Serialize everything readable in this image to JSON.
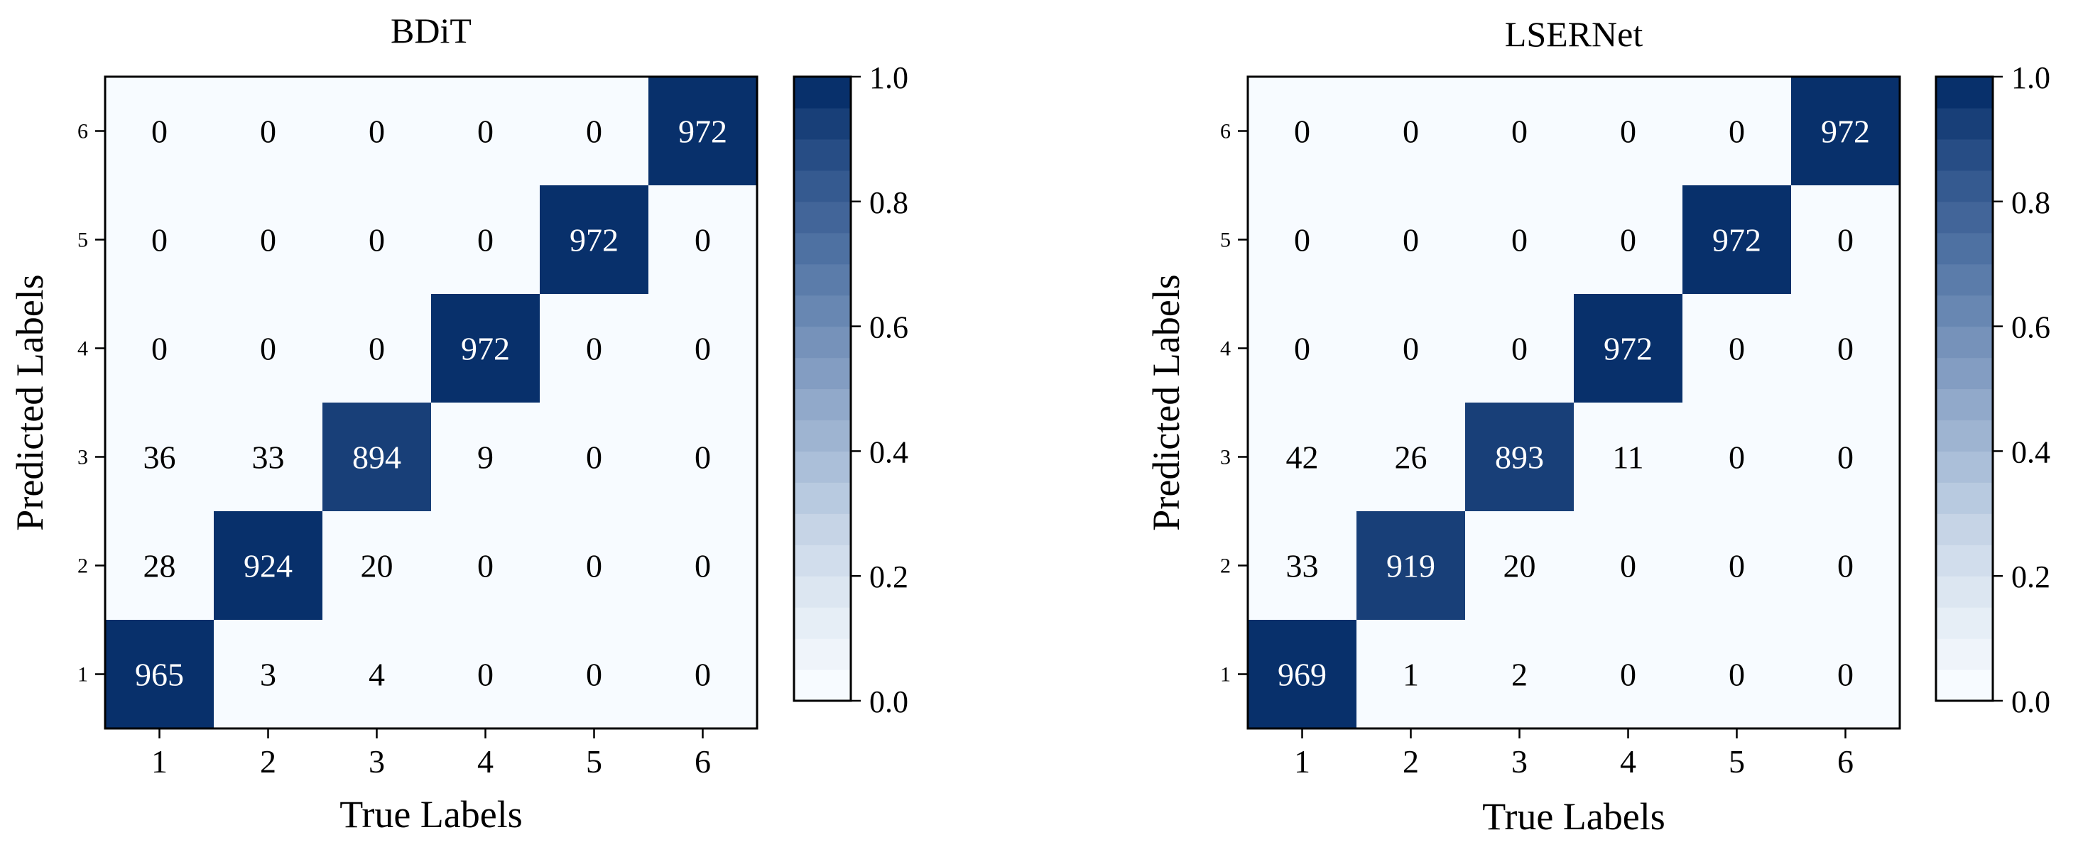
{
  "chart_data": [
    {
      "type": "heatmap",
      "title": "BDiT",
      "xlabel": "True Labels",
      "ylabel": "Predicted Labels",
      "x_categories": [
        "1",
        "2",
        "3",
        "4",
        "5",
        "6"
      ],
      "y_categories": [
        "1",
        "2",
        "3",
        "4",
        "5",
        "6"
      ],
      "rows_top_to_bottom": [
        "6",
        "5",
        "4",
        "3",
        "2",
        "1"
      ],
      "matrix_top_to_bottom": [
        [
          0,
          0,
          0,
          0,
          0,
          972
        ],
        [
          0,
          0,
          0,
          0,
          972,
          0
        ],
        [
          0,
          0,
          0,
          972,
          0,
          0
        ],
        [
          36,
          33,
          894,
          9,
          0,
          0
        ],
        [
          28,
          924,
          20,
          0,
          0,
          0
        ],
        [
          965,
          3,
          4,
          0,
          0,
          0
        ]
      ],
      "colorbar": {
        "range": [
          0.0,
          1.0
        ],
        "ticks": [
          "0.0",
          "0.2",
          "0.4",
          "0.6",
          "0.8",
          "1.0"
        ]
      },
      "colormap": {
        "low": "#f7fbff",
        "high": "#08306b",
        "levels": 20
      },
      "normalization_max": 972
    },
    {
      "type": "heatmap",
      "title": "LSERNet",
      "xlabel": "True Labels",
      "ylabel": "Predicted Labels",
      "x_categories": [
        "1",
        "2",
        "3",
        "4",
        "5",
        "6"
      ],
      "y_categories": [
        "1",
        "2",
        "3",
        "4",
        "5",
        "6"
      ],
      "rows_top_to_bottom": [
        "6",
        "5",
        "4",
        "3",
        "2",
        "1"
      ],
      "matrix_top_to_bottom": [
        [
          0,
          0,
          0,
          0,
          0,
          972
        ],
        [
          0,
          0,
          0,
          0,
          972,
          0
        ],
        [
          0,
          0,
          0,
          972,
          0,
          0
        ],
        [
          42,
          26,
          893,
          11,
          0,
          0
        ],
        [
          33,
          919,
          20,
          0,
          0,
          0
        ],
        [
          969,
          1,
          2,
          0,
          0,
          0
        ]
      ],
      "colorbar": {
        "range": [
          0.0,
          1.0
        ],
        "ticks": [
          "0.0",
          "0.2",
          "0.4",
          "0.6",
          "0.8",
          "1.0"
        ]
      },
      "colormap": {
        "low": "#f7fbff",
        "high": "#08306b",
        "levels": 20
      },
      "normalization_max": 972
    }
  ]
}
